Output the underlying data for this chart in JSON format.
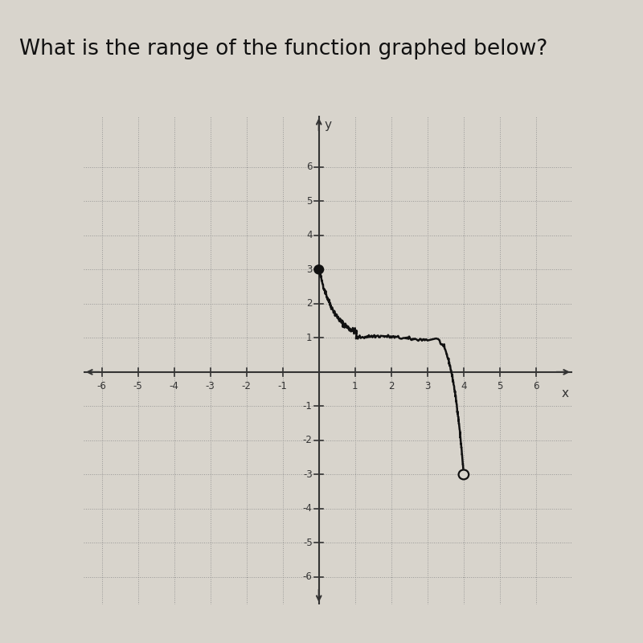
{
  "title": "What is the range of the function graphed below?",
  "title_fontsize": 19,
  "background_color": "#d8d4cc",
  "plot_bg_color": "#d8d4cc",
  "grid_color": "#888888",
  "axis_color": "#333333",
  "curve_color": "#111111",
  "closed_dot": [
    0,
    3
  ],
  "open_dot": [
    4,
    -3
  ],
  "xlim": [
    -6.5,
    7.0
  ],
  "ylim": [
    -6.8,
    7.5
  ],
  "xticks": [
    -6,
    -5,
    -4,
    -3,
    -2,
    -1,
    1,
    2,
    3,
    4,
    5,
    6
  ],
  "yticks": [
    -6,
    -5,
    -4,
    -3,
    -2,
    -1,
    1,
    2,
    3,
    4,
    5,
    6
  ],
  "xlabel": "x",
  "ylabel": "y"
}
